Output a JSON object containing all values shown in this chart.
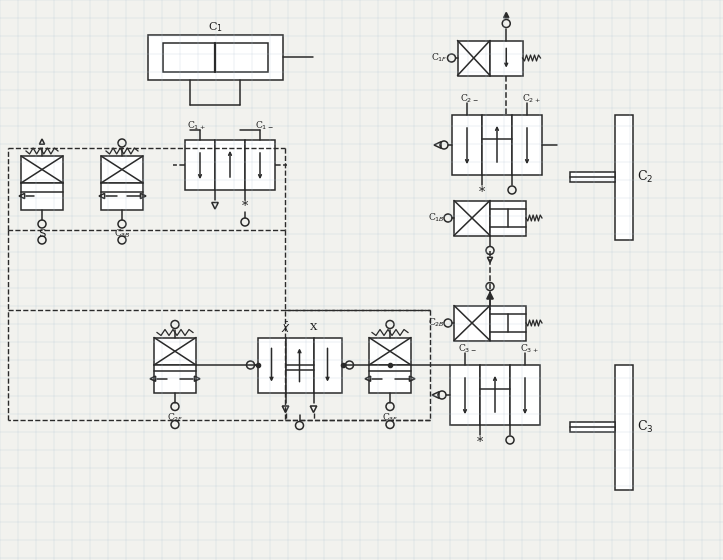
{
  "bg_color": "#f2f2ee",
  "line_color": "#2a2a2a",
  "dashed_color": "#2a2a2a",
  "grid_color": "#b0c4d4",
  "fig_width": 7.23,
  "fig_height": 5.6,
  "dpi": 100
}
